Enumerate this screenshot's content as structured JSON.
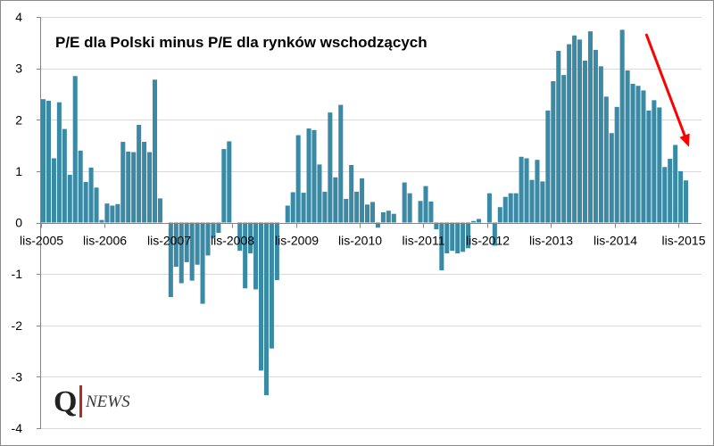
{
  "chart_data": {
    "type": "bar",
    "title": "P/E dla Polski minus P/E dla rynków wschodzących",
    "xlabel": "",
    "ylabel": "",
    "ylim": [
      -4,
      4
    ],
    "yticks": [
      -4,
      -3,
      -2,
      -1,
      0,
      1,
      2,
      3,
      4
    ],
    "grid": true,
    "bar_color": "#3a8aa6",
    "x_tick_labels": [
      {
        "label": "lis-2005",
        "index": 0
      },
      {
        "label": "lis-2006",
        "index": 12
      },
      {
        "label": "lis-2007",
        "index": 24
      },
      {
        "label": "lis-2008",
        "index": 36
      },
      {
        "label": "lis-2009",
        "index": 48
      },
      {
        "label": "lis-2010",
        "index": 60
      },
      {
        "label": "lis-2011",
        "index": 72
      },
      {
        "label": "lis-2012",
        "index": 84
      },
      {
        "label": "lis-2013",
        "index": 96
      },
      {
        "label": "lis-2014",
        "index": 108
      },
      {
        "label": "lis-2015",
        "index": 120
      }
    ],
    "values": [
      2.4,
      2.37,
      1.25,
      2.34,
      1.82,
      0.93,
      2.85,
      1.4,
      0.79,
      1.07,
      0.68,
      0.05,
      0.37,
      0.33,
      0.36,
      1.57,
      1.38,
      1.37,
      1.9,
      1.57,
      1.37,
      2.78,
      0.47,
      0.0,
      -1.45,
      -0.86,
      -1.18,
      -0.77,
      -1.13,
      -0.82,
      -1.58,
      -0.64,
      -0.31,
      -0.2,
      1.43,
      1.58,
      0.0,
      -0.55,
      -1.28,
      -0.6,
      -1.3,
      -2.88,
      -3.36,
      -2.45,
      -1.12,
      0.0,
      0.33,
      0.59,
      1.7,
      0.58,
      1.83,
      1.8,
      1.13,
      0.6,
      2.14,
      0.88,
      2.29,
      0.46,
      1.12,
      0.6,
      0.86,
      0.35,
      0.4,
      -0.1,
      0.2,
      0.23,
      0.17,
      0.0,
      0.78,
      0.57,
      0.0,
      0.42,
      0.71,
      0.41,
      -0.13,
      -0.93,
      -0.6,
      -0.55,
      -0.6,
      -0.57,
      -0.5,
      0.03,
      0.07,
      0.0,
      0.57,
      -0.45,
      0.3,
      0.5,
      0.57,
      0.57,
      1.28,
      1.25,
      0.83,
      1.22,
      0.8,
      2.18,
      2.75,
      3.34,
      2.87,
      3.47,
      3.64,
      3.56,
      3.15,
      3.72,
      3.36,
      3.04,
      2.45,
      1.74,
      2.25,
      3.75,
      2.96,
      2.7,
      2.66,
      2.57,
      2.18,
      2.38,
      2.24,
      1.08,
      1.24,
      1.51,
      1.0,
      0.82
    ],
    "annotations": [
      {
        "type": "arrow",
        "color": "#ff0000",
        "from": {
          "index": 114,
          "value": 3.65
        },
        "to": {
          "index": 122,
          "value": 1.47
        }
      }
    ]
  },
  "logo": {
    "letter": "Q",
    "text": "NEWS"
  }
}
